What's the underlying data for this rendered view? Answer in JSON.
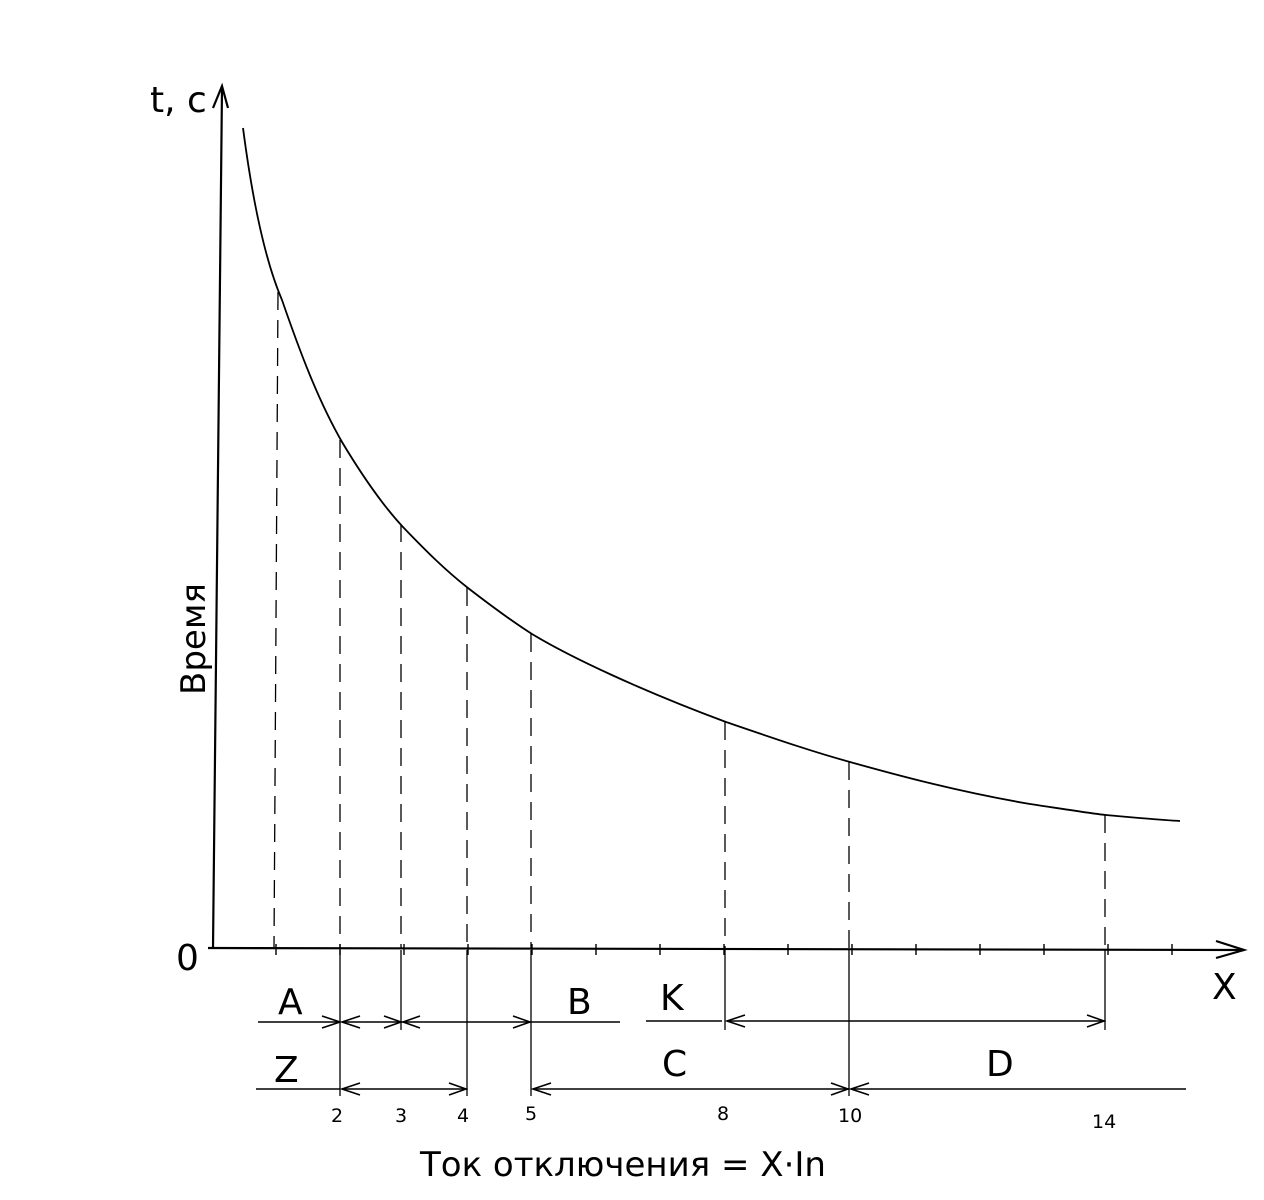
{
  "chart_data": {
    "type": "line",
    "y_axis_unit_label": "t, c",
    "y_axis_title": "Время",
    "x_axis_end_label": "X",
    "origin_label": "0",
    "x_axis_title": "Ток отключения = X·In",
    "x_ticks": [
      {
        "value": 2,
        "label": "2"
      },
      {
        "value": 3,
        "label": "3"
      },
      {
        "value": 4,
        "label": "4"
      },
      {
        "value": 5,
        "label": "5"
      },
      {
        "value": 8,
        "label": "8"
      },
      {
        "value": 10,
        "label": "10"
      },
      {
        "value": 14,
        "label": "14"
      }
    ],
    "curve": {
      "shape": "decreasing time-current characteristic",
      "marked_x": [
        1.5,
        2,
        3,
        4,
        5,
        8,
        10,
        14
      ]
    },
    "ranges": [
      {
        "label": "A",
        "row": 1
      },
      {
        "label": "B",
        "row": 1
      },
      {
        "label": "K",
        "row": 1
      },
      {
        "label": "Z",
        "row": 2
      },
      {
        "label": "C",
        "row": 2
      },
      {
        "label": "D",
        "row": 2
      }
    ]
  }
}
